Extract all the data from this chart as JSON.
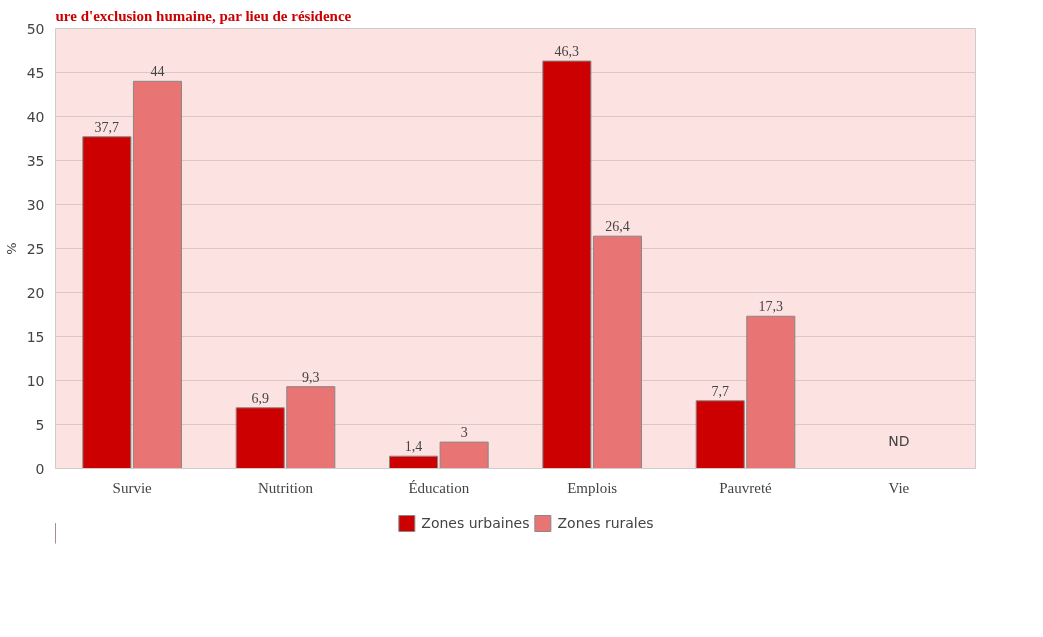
{
  "chart_data": {
    "type": "bar",
    "title": "ure d'exclusion humaine, par lieu de résidence",
    "ylabel": "%",
    "categories": [
      "Survie",
      "Nutrition",
      "Éducation",
      "Emplois",
      "Pauvreté",
      "Vie"
    ],
    "series": [
      {
        "name": "Zones urbaines",
        "color": "#cc0000",
        "values": [
          37.7,
          6.9,
          1.4,
          46.3,
          7.7,
          null
        ],
        "value_labels": [
          "37,7",
          "6,9",
          "1,4",
          "46,3",
          "7,7",
          null
        ]
      },
      {
        "name": "Zones rurales",
        "color": "#e87474",
        "values": [
          44,
          9.3,
          3,
          26.4,
          17.3,
          null
        ],
        "value_labels": [
          "44",
          "9,3",
          "3",
          "26,4",
          "17,3",
          null
        ]
      }
    ],
    "ylim": [
      0,
      50
    ],
    "yticks": [
      0,
      5,
      10,
      15,
      20,
      25,
      30,
      35,
      40,
      45,
      50
    ],
    "grid": "y",
    "legend": "bottom",
    "annotations": [
      "ND"
    ]
  }
}
